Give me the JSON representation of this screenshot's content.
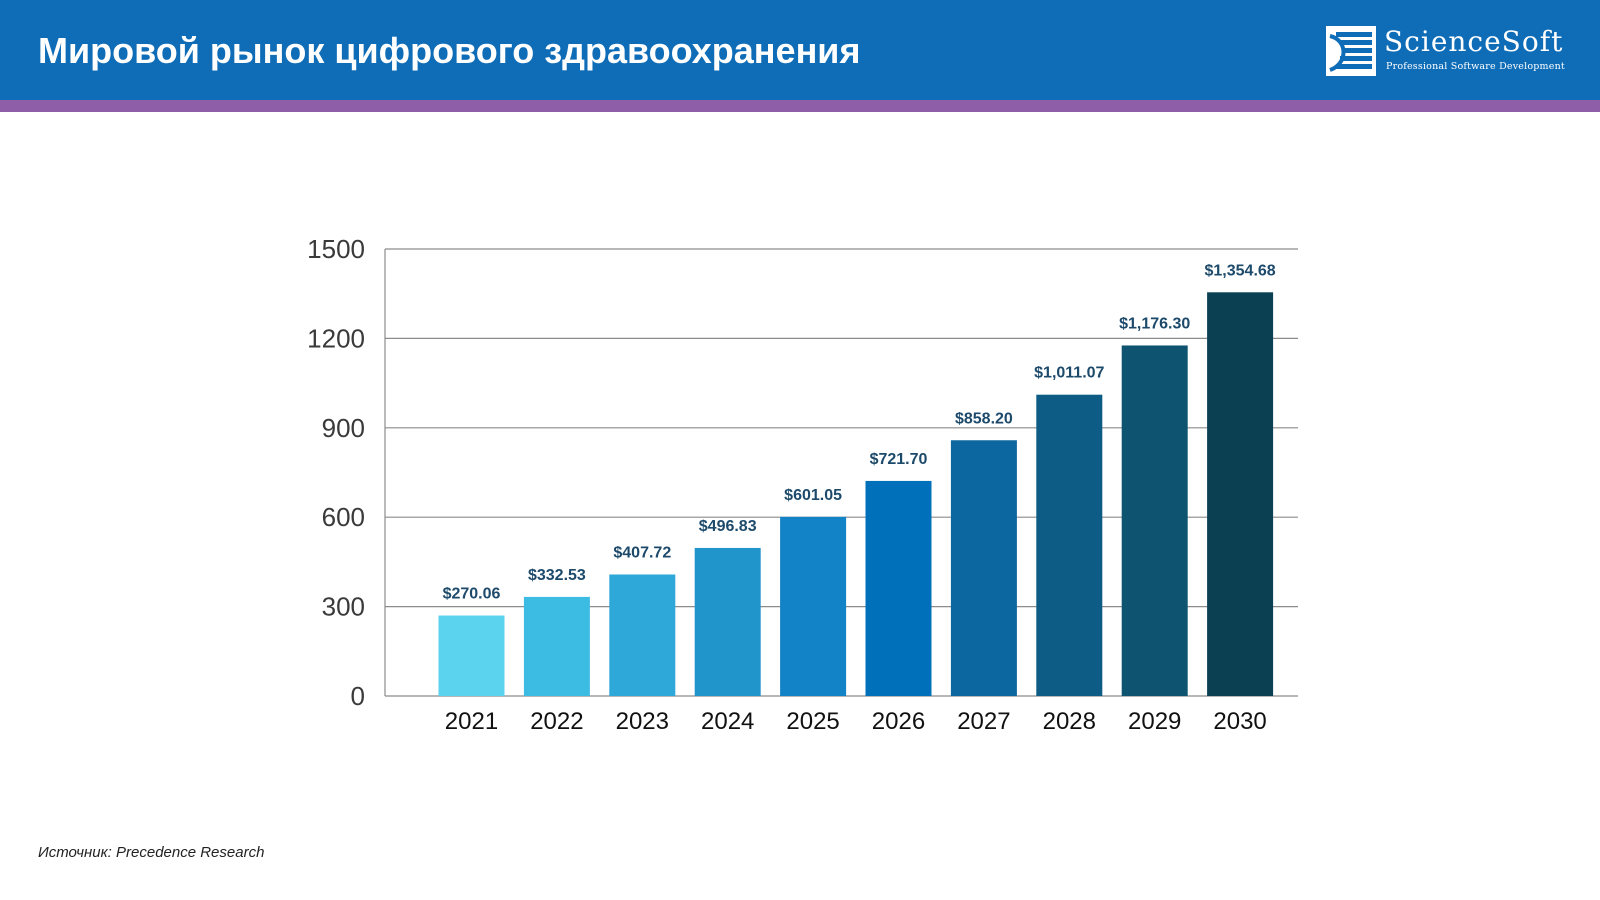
{
  "header": {
    "title": "Мировой рынок цифрового здравоохранения",
    "logo": {
      "name": "ScienceSoft",
      "tagline": "Professional Software Development"
    }
  },
  "colors": {
    "header_bg": "#0f6db8",
    "stripe": "#8e5fa8",
    "label_text": "#1d4a6b",
    "gridline": "#8c8c8c",
    "bars": [
      "#5bd2ee",
      "#3dbce3",
      "#2ea8d8",
      "#1f95cc",
      "#1183c6",
      "#0170bb",
      "#0c669f",
      "#0d5c86",
      "#0e5470",
      "#0b3f52"
    ]
  },
  "chart_data": {
    "type": "bar",
    "categories": [
      "2021",
      "2022",
      "2023",
      "2024",
      "2025",
      "2026",
      "2027",
      "2028",
      "2029",
      "2030"
    ],
    "values": [
      270.06,
      332.53,
      407.72,
      496.83,
      601.05,
      721.7,
      858.2,
      1011.07,
      1176.3,
      1354.68
    ],
    "data_labels": [
      "$270.06",
      "$332.53",
      "$407.72",
      "$496.83",
      "$601.05",
      "$721.70",
      "$858.20",
      "$1,011.07",
      "$1,176.30",
      "$1,354.68"
    ],
    "yticks": [
      "0",
      "300",
      "600",
      "900",
      "1200",
      "1500"
    ],
    "ylim": [
      0,
      1500
    ],
    "grid": true
  },
  "source": "Источник: Precedence Research"
}
